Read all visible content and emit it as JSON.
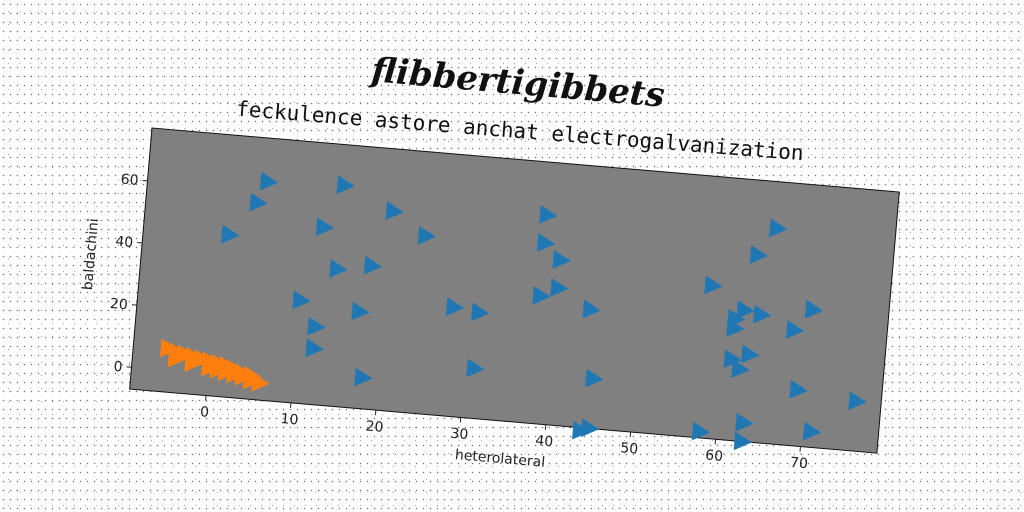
{
  "chart_data": {
    "type": "scatter",
    "suptitle": "flibbertigibbets",
    "title": "feckulence astore anchat electrogalvanization",
    "xlabel": "heterolateral",
    "ylabel": "baldachini",
    "xlim": [
      -9,
      79
    ],
    "ylim": [
      -7,
      77
    ],
    "xticks": [
      0,
      10,
      20,
      30,
      40,
      50,
      60,
      70
    ],
    "yticks": [
      0,
      20,
      40,
      60
    ],
    "grid": false,
    "legend": "none",
    "colors": {
      "plot_bg": "#808080",
      "series_1": "#1f77b4",
      "series_2": "#ff7f0e"
    },
    "series": [
      {
        "marker": "triangle-right",
        "points": [
          [
            5,
            63
          ],
          [
            14,
            64
          ],
          [
            20,
            57
          ],
          [
            4,
            56
          ],
          [
            12,
            50
          ],
          [
            24,
            50
          ],
          [
            1,
            45
          ],
          [
            14,
            37
          ],
          [
            18,
            39
          ],
          [
            10,
            26
          ],
          [
            17,
            24
          ],
          [
            12,
            18
          ],
          [
            12,
            11
          ],
          [
            28,
            28
          ],
          [
            31,
            27
          ],
          [
            18,
            3
          ],
          [
            31,
            9
          ],
          [
            38,
            60
          ],
          [
            38,
            51
          ],
          [
            40,
            46
          ],
          [
            40,
            37
          ],
          [
            38,
            34
          ],
          [
            44,
            31
          ],
          [
            45,
            9
          ],
          [
            44,
            -8
          ],
          [
            45,
            -7
          ],
          [
            65,
            62
          ],
          [
            63,
            53
          ],
          [
            58,
            42
          ],
          [
            62,
            35
          ],
          [
            64,
            34
          ],
          [
            61,
            32
          ],
          [
            61,
            29
          ],
          [
            70,
            37
          ],
          [
            68,
            30
          ],
          [
            63,
            21
          ],
          [
            61,
            19
          ],
          [
            62,
            16
          ],
          [
            69,
            11
          ],
          [
            76,
            9
          ],
          [
            63,
            -1
          ],
          [
            71,
            -2
          ],
          [
            58,
            -5
          ],
          [
            63,
            -7
          ]
        ]
      },
      {
        "marker": "triangle-right",
        "points": [
          [
            -5,
            7
          ],
          [
            -4,
            6
          ],
          [
            -3,
            5.5
          ],
          [
            -2,
            5
          ],
          [
            -1,
            4.5
          ],
          [
            0,
            4
          ],
          [
            1,
            3.5
          ],
          [
            2,
            3
          ],
          [
            3,
            2
          ],
          [
            4,
            1
          ],
          [
            5,
            0.5
          ],
          [
            -4,
            4
          ],
          [
            -2,
            3
          ],
          [
            0,
            2
          ],
          [
            2,
            1
          ],
          [
            4,
            0
          ],
          [
            1,
            1.5
          ],
          [
            3,
            0.5
          ],
          [
            5,
            -1
          ],
          [
            6,
            -1.5
          ]
        ]
      }
    ]
  }
}
